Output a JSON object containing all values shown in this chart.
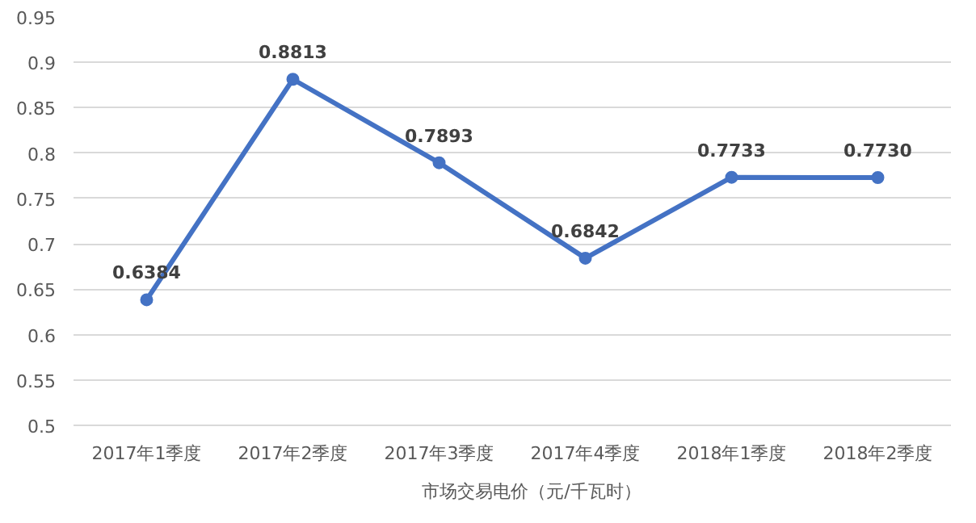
{
  "chart_data": {
    "type": "line",
    "categories": [
      "2017年1季度",
      "2017年2季度",
      "2017年3季度",
      "2017年4季度",
      "2018年1季度",
      "2018年2季度"
    ],
    "series": [
      {
        "name": "市场交易电价（元/千瓦时）",
        "color": "#4472c4",
        "values": [
          0.6384,
          0.8813,
          0.7893,
          0.6842,
          0.7733,
          0.773
        ],
        "value_labels": [
          "0.6384",
          "0.8813",
          "0.7893",
          "0.6842",
          "0.7733",
          "0.7730"
        ]
      }
    ],
    "ylim": [
      0.5,
      0.95
    ],
    "yticks": [
      0.5,
      0.55,
      0.6,
      0.65,
      0.7,
      0.75,
      0.8,
      0.85,
      0.9,
      0.95
    ],
    "grid": "y",
    "legend": "bottom",
    "marker": "circle",
    "line_style": "solid"
  }
}
